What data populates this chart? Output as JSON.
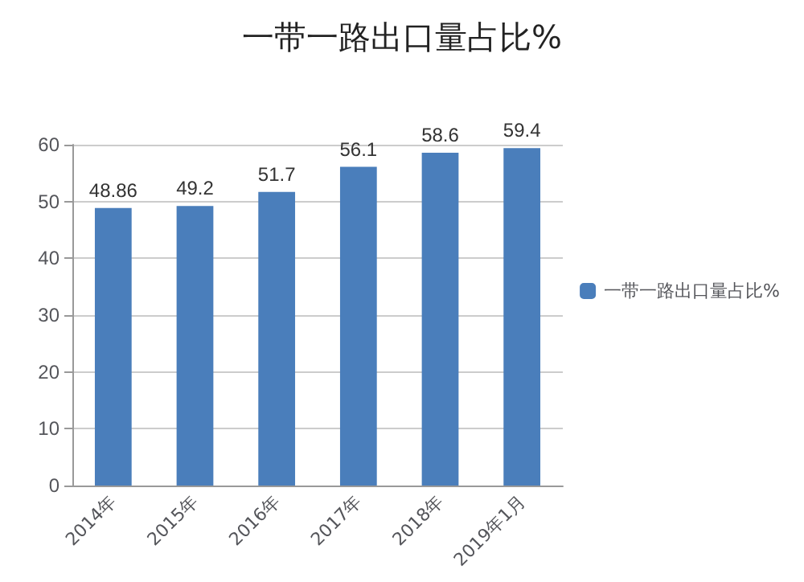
{
  "chart_data": {
    "type": "bar",
    "title": "一带一路出口量占比%",
    "categories": [
      "2014年",
      "2015年",
      "2016年",
      "2017年",
      "2018年",
      "2019年1月"
    ],
    "series": [
      {
        "name": "一带一路出口量占比%",
        "color": "#4a7ebb",
        "values": [
          48.86,
          49.2,
          51.7,
          56.1,
          58.6,
          59.4
        ]
      }
    ],
    "ylim": [
      0,
      60
    ],
    "yticks": [
      0,
      10,
      20,
      30,
      40,
      50,
      60
    ],
    "grid": "y",
    "legend": "right",
    "data_labels": true
  }
}
